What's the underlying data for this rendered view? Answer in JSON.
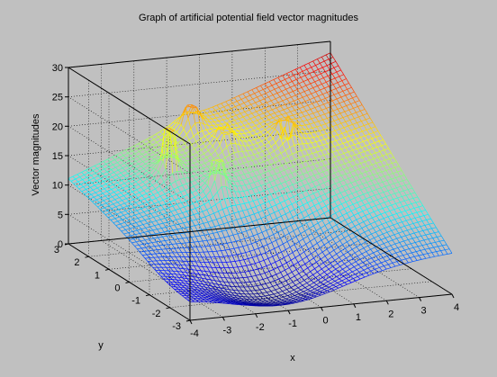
{
  "chart_data": {
    "type": "surface",
    "title": "Graph of artificial potential field vector magnitudes",
    "xlabel": "x",
    "ylabel": "y",
    "zlabel": "Vector magnitudes",
    "xlim": [
      -4,
      4
    ],
    "ylim": [
      -3,
      3
    ],
    "zlim": [
      0,
      30
    ],
    "x_ticks": [
      "-4",
      "-3",
      "-2",
      "-1",
      "0",
      "1",
      "2",
      "3",
      "4"
    ],
    "y_ticks": [
      "-3",
      "-2",
      "-1",
      "0",
      "1",
      "2",
      "3"
    ],
    "z_ticks": [
      "0",
      "5",
      "10",
      "15",
      "20",
      "25",
      "30"
    ],
    "grid": true,
    "colormap": "jet",
    "style": "mesh",
    "surface": {
      "base_bowl_min": 0,
      "corner_values": {
        "x_-4_y_-3": 4,
        "x_-4_y_3": 11,
        "x_4_y_-3": 7,
        "x_4_y_3": 28
      }
    },
    "spikes": [
      {
        "x": -1.8,
        "y": 1.6,
        "height": 21
      },
      {
        "x": -0.5,
        "y": 2.6,
        "height": 22
      },
      {
        "x": -0.9,
        "y": 0.6,
        "height": 17.5
      },
      {
        "x": 0.0,
        "y": 1.7,
        "height": 19.5
      },
      {
        "x": 1.6,
        "y": 1.3,
        "height": 18.5
      }
    ]
  },
  "colors": {
    "window_background": "#c0c0c0",
    "axes_background": "#c0c0c0",
    "grid_color": "#000000"
  }
}
